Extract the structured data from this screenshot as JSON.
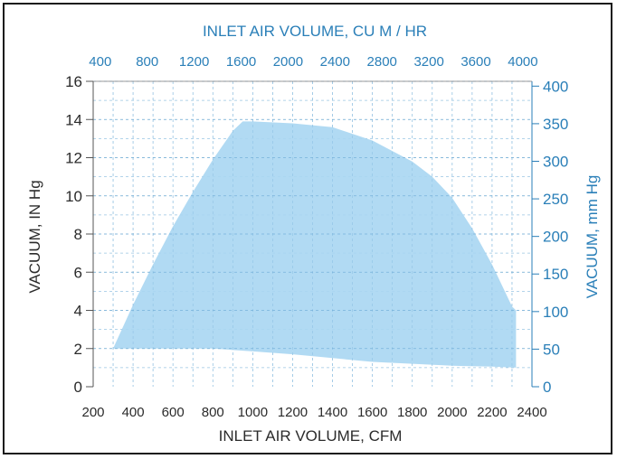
{
  "chart_data": {
    "type": "area",
    "xlabel": "INLET AIR VOLUME, CFM",
    "ylabel": "VACUUM, IN Hg",
    "x2label": "INLET AIR VOLUME, CU M / HR",
    "y2label": "VACUUM, mm Hg",
    "xlim": [
      200,
      2400
    ],
    "ylim": [
      0,
      16
    ],
    "x_ticks": [
      "200",
      "400",
      "600",
      "800",
      "1000",
      "1200",
      "1400",
      "1600",
      "1800",
      "2000",
      "2200",
      "2400"
    ],
    "y_ticks": [
      "0",
      "2",
      "4",
      "6",
      "8",
      "10",
      "12",
      "14",
      "16"
    ],
    "x2_ticks": [
      "400",
      "800",
      "1200",
      "1600",
      "2000",
      "2400",
      "2800",
      "3200",
      "3600",
      "4000"
    ],
    "y2_ticks": [
      "0",
      "50",
      "100",
      "150",
      "200",
      "250",
      "300",
      "350",
      "400"
    ],
    "grid": true,
    "colors": {
      "fill": "#a9d6f2",
      "secondary_axis": "#2a7fb8",
      "grid": "#7fb6dc"
    },
    "series": [
      {
        "upper": {
          "x": [
            300,
            400,
            500,
            600,
            700,
            800,
            900,
            950,
            1000,
            1200,
            1400,
            1600,
            1800,
            1900,
            2000,
            2100,
            2200,
            2300,
            2320
          ],
          "y": [
            2,
            4.3,
            6.4,
            8.4,
            10.2,
            11.9,
            13.4,
            13.9,
            13.9,
            13.8,
            13.6,
            12.9,
            11.8,
            11,
            9.9,
            8.3,
            6.4,
            4.2,
            4
          ]
        },
        "lower": {
          "x": [
            300,
            600,
            800,
            1000,
            1200,
            1400,
            1600,
            1800,
            2000,
            2200,
            2320
          ],
          "y": [
            2,
            2,
            2,
            1.85,
            1.7,
            1.5,
            1.3,
            1.2,
            1.1,
            1.05,
            1
          ]
        }
      }
    ]
  }
}
